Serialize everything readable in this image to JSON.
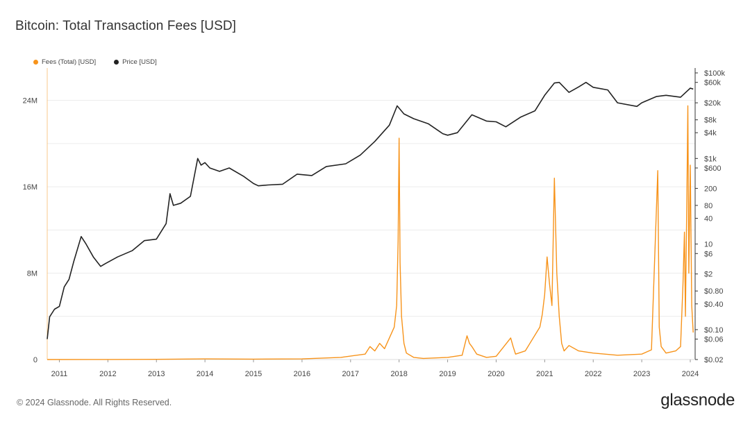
{
  "chart_data": {
    "type": "line",
    "title": "Bitcoin: Total Transaction Fees [USD]",
    "legend_placement": "top-left",
    "grid": true,
    "x_ticks": [
      "2011",
      "2012",
      "2013",
      "2014",
      "2015",
      "2016",
      "2017",
      "2018",
      "2019",
      "2020",
      "2021",
      "2022",
      "2023",
      "2024"
    ],
    "x_range": [
      2010.75,
      2024.1
    ],
    "left_axis": {
      "ticks": [
        {
          "label": "0",
          "value": 0
        },
        {
          "label": "8M",
          "value": 8000000
        },
        {
          "label": "16M",
          "value": 16000000
        },
        {
          "label": "24M",
          "value": 24000000
        }
      ],
      "range": [
        0,
        27000000
      ]
    },
    "right_axis": {
      "scale": "log",
      "ticks": [
        {
          "label": "$0.02",
          "value": 0.02
        },
        {
          "label": "$0.06",
          "value": 0.06
        },
        {
          "label": "$0.10",
          "value": 0.1
        },
        {
          "label": "$0.40",
          "value": 0.4
        },
        {
          "label": "$0.80",
          "value": 0.8
        },
        {
          "label": "$2",
          "value": 2
        },
        {
          "label": "$6",
          "value": 6
        },
        {
          "label": "10",
          "value": 10
        },
        {
          "label": "40",
          "value": 40
        },
        {
          "label": "80",
          "value": 80
        },
        {
          "label": "200",
          "value": 200
        },
        {
          "label": "$600",
          "value": 600
        },
        {
          "label": "$1k",
          "value": 1000
        },
        {
          "label": "$4k",
          "value": 4000
        },
        {
          "label": "$8k",
          "value": 8000
        },
        {
          "label": "$20k",
          "value": 20000
        },
        {
          "label": "$60k",
          "value": 60000
        },
        {
          "label": "$100k",
          "value": 100000
        }
      ],
      "range": [
        0.02,
        130000
      ]
    },
    "series": [
      {
        "name": "Fees (Total) [USD]",
        "color": "#f7931a",
        "axis": "left",
        "x": [
          2010.75,
          2012.0,
          2013.0,
          2014.0,
          2015.0,
          2016.0,
          2016.8,
          2017.3,
          2017.4,
          2017.5,
          2017.6,
          2017.7,
          2017.8,
          2017.9,
          2017.95,
          2017.98,
          2018.0,
          2018.02,
          2018.05,
          2018.1,
          2018.15,
          2018.3,
          2018.5,
          2019.0,
          2019.3,
          2019.4,
          2019.45,
          2019.5,
          2019.6,
          2019.8,
          2020.0,
          2020.3,
          2020.35,
          2020.4,
          2020.6,
          2020.9,
          2020.95,
          2021.0,
          2021.05,
          2021.1,
          2021.15,
          2021.2,
          2021.25,
          2021.3,
          2021.35,
          2021.4,
          2021.5,
          2021.7,
          2022.0,
          2022.5,
          2023.0,
          2023.2,
          2023.33,
          2023.36,
          2023.4,
          2023.5,
          2023.7,
          2023.8,
          2023.85,
          2023.88,
          2023.9,
          2023.93,
          2023.95,
          2023.97,
          2024.0,
          2024.03,
          2024.06
        ],
        "values": [
          0,
          5000,
          20000,
          60000,
          40000,
          60000,
          200000,
          500000,
          1200000,
          800000,
          1500000,
          1000000,
          2000000,
          3000000,
          5000000,
          11000000,
          20500000,
          9000000,
          4000000,
          1500000,
          600000,
          200000,
          100000,
          200000,
          400000,
          2200000,
          1500000,
          1200000,
          500000,
          200000,
          300000,
          2000000,
          1200000,
          500000,
          800000,
          3000000,
          4200000,
          6000000,
          9500000,
          7000000,
          5000000,
          16800000,
          8000000,
          4000000,
          1500000,
          800000,
          1300000,
          800000,
          600000,
          400000,
          500000,
          900000,
          17500000,
          3000000,
          1200000,
          600000,
          800000,
          1200000,
          7000000,
          11800000,
          4000000,
          15000000,
          23500000,
          8000000,
          18000000,
          5000000,
          2500000
        ]
      },
      {
        "name": "Price [USD]",
        "color": "#222222",
        "axis": "right",
        "x": [
          2010.75,
          2010.8,
          2010.9,
          2011.0,
          2011.1,
          2011.2,
          2011.3,
          2011.45,
          2011.55,
          2011.7,
          2011.85,
          2011.95,
          2012.2,
          2012.5,
          2012.75,
          2013.0,
          2013.2,
          2013.28,
          2013.35,
          2013.5,
          2013.7,
          2013.85,
          2013.92,
          2014.0,
          2014.1,
          2014.3,
          2014.5,
          2014.8,
          2015.0,
          2015.1,
          2015.3,
          2015.6,
          2015.9,
          2016.2,
          2016.5,
          2016.9,
          2017.2,
          2017.5,
          2017.8,
          2017.96,
          2018.1,
          2018.3,
          2018.6,
          2018.9,
          2019.0,
          2019.2,
          2019.5,
          2019.8,
          2020.0,
          2020.2,
          2020.5,
          2020.8,
          2021.0,
          2021.2,
          2021.3,
          2021.5,
          2021.7,
          2021.85,
          2022.0,
          2022.3,
          2022.5,
          2022.9,
          2023.0,
          2023.3,
          2023.5,
          2023.8,
          2024.0,
          2024.06
        ],
        "values": [
          0.06,
          0.2,
          0.3,
          0.35,
          1.0,
          1.5,
          4.0,
          15,
          10,
          5,
          3,
          3.5,
          5,
          7,
          12,
          13,
          30,
          150,
          80,
          90,
          130,
          1000,
          700,
          800,
          600,
          500,
          600,
          380,
          260,
          230,
          240,
          250,
          430,
          400,
          650,
          750,
          1200,
          2500,
          6000,
          17000,
          11000,
          8500,
          6500,
          3800,
          3500,
          4000,
          10500,
          7500,
          7200,
          5500,
          9200,
          13000,
          30000,
          58000,
          60000,
          35000,
          47000,
          60000,
          46000,
          40000,
          20000,
          16500,
          20000,
          28000,
          30000,
          27000,
          44000,
          42000
        ]
      }
    ]
  },
  "footer": {
    "copyright": "© 2024 Glassnode. All Rights Reserved.",
    "brand": "glassnode"
  }
}
